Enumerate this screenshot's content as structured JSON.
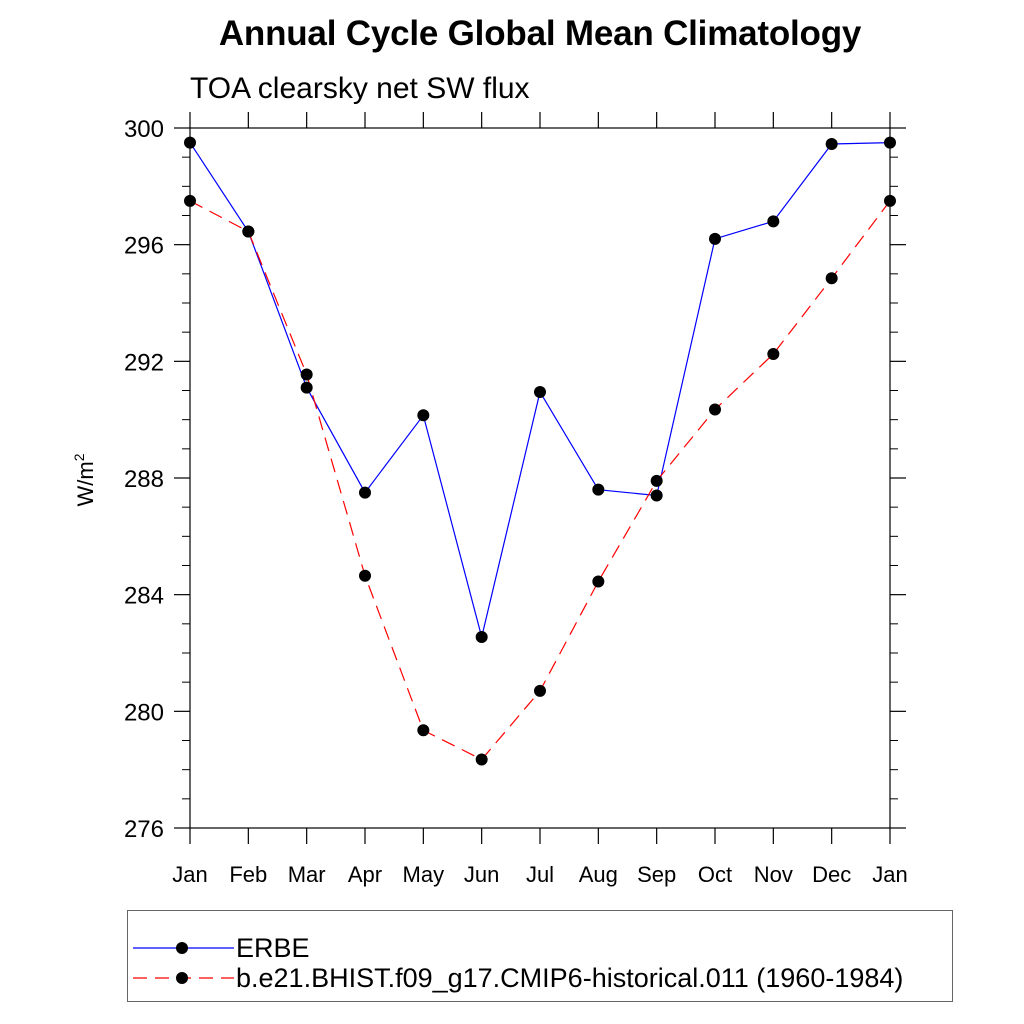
{
  "chart_data": {
    "type": "line",
    "title": "Annual Cycle Global Mean Climatology",
    "subtitle": "TOA clearsky net SW flux",
    "ylabel": "W/m",
    "ylabel_superscript": "2",
    "xlabel": "",
    "categories": [
      "Jan",
      "Feb",
      "Mar",
      "Apr",
      "May",
      "Jun",
      "Jul",
      "Aug",
      "Sep",
      "Oct",
      "Nov",
      "Dec",
      "Jan"
    ],
    "ylim": [
      276,
      300
    ],
    "yticks": [
      276,
      280,
      284,
      288,
      292,
      296,
      300
    ],
    "yminor_step": 1,
    "series": [
      {
        "name": "ERBE",
        "color": "#0000ff",
        "dash": "solid",
        "values": [
          299.5,
          296.45,
          291.1,
          287.5,
          290.15,
          282.55,
          290.95,
          287.6,
          287.4,
          296.2,
          296.8,
          299.45,
          299.5
        ]
      },
      {
        "name": "b.e21.BHIST.f09_g17.CMIP6-historical.011 (1960-1984)",
        "color": "#ff0000",
        "dash": "dashed",
        "values": [
          297.5,
          296.45,
          291.55,
          284.65,
          279.35,
          278.35,
          280.7,
          284.45,
          287.9,
          290.35,
          292.25,
          294.85,
          297.5
        ]
      }
    ]
  }
}
